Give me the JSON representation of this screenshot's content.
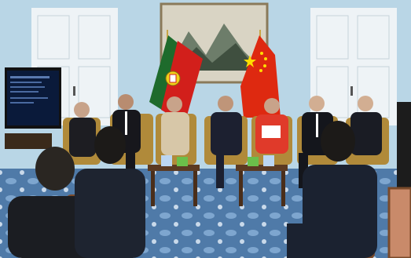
{
  "scene": {
    "type": "photograph",
    "subject": "panel-discussion",
    "flags": [
      "Portugal",
      "China"
    ],
    "colors": {
      "wall": "#b9d6e6",
      "door": "#eef3f6",
      "carpet": "#4f7aa8",
      "flag_pt_green": "#1e6b2c",
      "flag_pt_red": "#d21f1b",
      "flag_cn_red": "#de2910",
      "flag_cn_star": "#ffde00",
      "chair_wood": "#7a4a2a",
      "chair_fabric": "#c98a6a",
      "gold_chair": "#b08a3a"
    }
  }
}
